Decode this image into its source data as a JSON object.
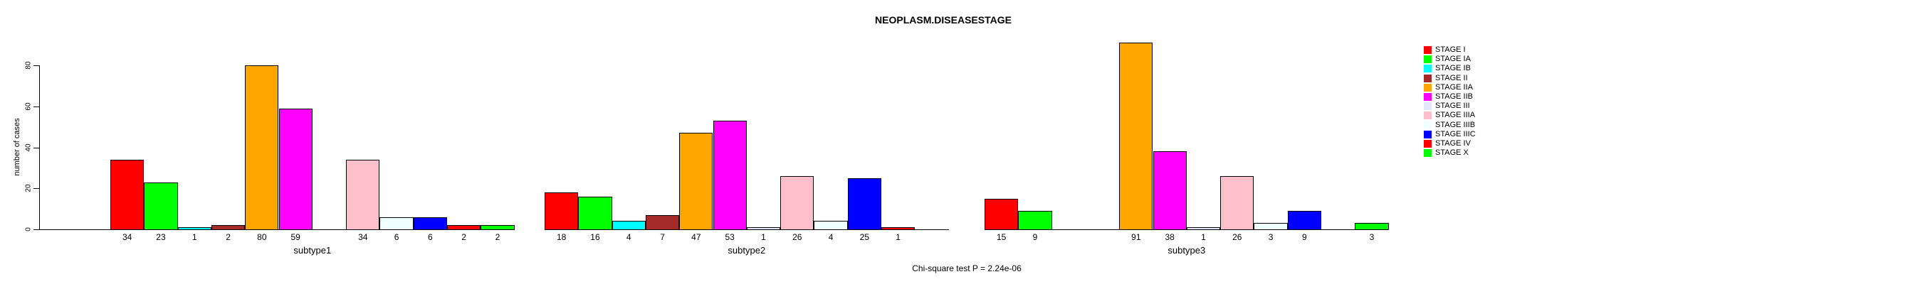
{
  "title": "NEOPLASM.DISEASESTAGE",
  "ylabel": "number of cases",
  "footnote": "Chi-square test P = 2.24e-06",
  "chart_data": {
    "type": "bar",
    "title": "NEOPLASM.DISEASESTAGE",
    "xlabel": "",
    "ylabel": "number of cases",
    "ylim": [
      0,
      95
    ],
    "yticks": [
      0,
      20,
      40,
      60,
      80
    ],
    "grid": false,
    "legend_position": "right",
    "bar_border_color": "#000000",
    "categories": [
      "STAGE I",
      "STAGE IA",
      "STAGE IB",
      "STAGE II",
      "STAGE IIA",
      "STAGE IIB",
      "STAGE III",
      "STAGE IIIA",
      "STAGE IIIB",
      "STAGE IIIC",
      "STAGE IV",
      "STAGE X"
    ],
    "colors": [
      "#FF0000",
      "#00FF00",
      "#00FFFF",
      "#A52A2A",
      "#FFA500",
      "#FF00FF",
      "#E6E6FA",
      "#FFC0CB",
      "#F0FFFF",
      "#0000FF",
      "#FF0000",
      "#00FF00"
    ],
    "series": [
      {
        "name": "subtype1",
        "values": [
          34,
          23,
          1,
          2,
          80,
          59,
          0,
          34,
          6,
          6,
          2,
          2
        ]
      },
      {
        "name": "subtype2",
        "values": [
          18,
          16,
          4,
          7,
          47,
          53,
          1,
          26,
          4,
          25,
          1,
          0
        ]
      },
      {
        "name": "subtype3",
        "values": [
          15,
          9,
          0,
          0,
          91,
          38,
          1,
          26,
          3,
          9,
          0,
          3
        ]
      }
    ],
    "value_labels_shown": true,
    "zero_values_hidden": true,
    "annotation": "Chi-square test P = 2.24e-06"
  }
}
